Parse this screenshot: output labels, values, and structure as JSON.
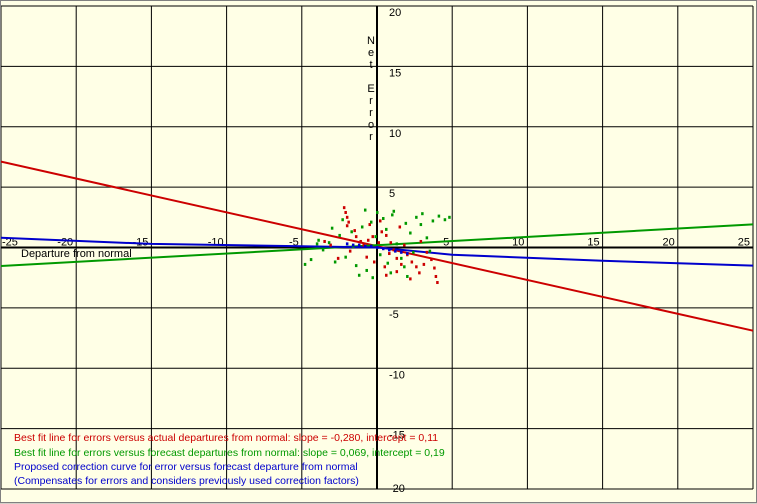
{
  "chart_data": {
    "type": "scatter",
    "title": "",
    "xlabel": "Departure from normal",
    "ylabel": "Net Error",
    "xlim": [
      -25,
      25
    ],
    "ylim": [
      -20,
      20
    ],
    "grid": true,
    "x_ticks": [
      "-25",
      "-20",
      "-15",
      "-10",
      "-5",
      "5",
      "10",
      "15",
      "20",
      "25"
    ],
    "x_tick_values": [
      -25,
      -20,
      -15,
      -10,
      -5,
      5,
      10,
      15,
      20,
      25
    ],
    "y_ticks": [
      "20",
      "15",
      "10",
      "5",
      "-5",
      "-10",
      "-15",
      "-20"
    ],
    "y_tick_values": [
      20,
      15,
      10,
      5,
      -5,
      -10,
      -15,
      -20
    ],
    "lines": [
      {
        "name": "actual",
        "color": "#cc0000",
        "slope": -0.28,
        "intercept": 0.11
      },
      {
        "name": "forecast",
        "color": "#009900",
        "slope": 0.069,
        "intercept": 0.19
      },
      {
        "name": "correction",
        "color": "#0000cc",
        "points": [
          [
            -25,
            0.8
          ],
          [
            -15,
            0.3
          ],
          [
            -5,
            0.1
          ],
          [
            0,
            0.0
          ],
          [
            5,
            -0.6
          ],
          [
            15,
            -1.1
          ],
          [
            25,
            -1.5
          ]
        ]
      }
    ],
    "series": [
      {
        "color": "#cc0000",
        "points": [
          [
            -2.2,
            3.3
          ],
          [
            -2.1,
            2.9
          ],
          [
            -2.0,
            2.5
          ],
          [
            -1.9,
            2.1
          ],
          [
            -2.0,
            1.8
          ],
          [
            -1.5,
            1.4
          ],
          [
            -1.4,
            0.9
          ],
          [
            -1.1,
            0.5
          ],
          [
            -0.9,
            0.2
          ],
          [
            -0.6,
            0.6
          ],
          [
            -0.3,
            0.9
          ],
          [
            0.1,
            0.4
          ],
          [
            0.3,
            1.3
          ],
          [
            0.6,
            1.0
          ],
          [
            0.9,
            0.4
          ],
          [
            1.1,
            -0.2
          ],
          [
            1.3,
            -0.9
          ],
          [
            1.6,
            -1.4
          ],
          [
            2.0,
            -0.6
          ],
          [
            2.3,
            -1.2
          ],
          [
            2.6,
            -1.6
          ],
          [
            2.8,
            -2.1
          ],
          [
            3.1,
            -1.4
          ],
          [
            3.6,
            -1.0
          ],
          [
            3.8,
            -1.7
          ],
          [
            3.9,
            -2.4
          ],
          [
            4.0,
            -2.9
          ],
          [
            -0.7,
            -0.8
          ],
          [
            -0.2,
            -1.2
          ],
          [
            0.5,
            -1.6
          ],
          [
            1.3,
            -2.0
          ],
          [
            -3.5,
            0.5
          ],
          [
            -3.1,
            0.2
          ],
          [
            -1.8,
            -0.3
          ],
          [
            0.8,
            -0.5
          ],
          [
            1.8,
            0.2
          ],
          [
            2.9,
            0.5
          ],
          [
            3.3,
            -0.4
          ],
          [
            -0.5,
            1.9
          ],
          [
            0.2,
            2.2
          ],
          [
            1.5,
            1.7
          ],
          [
            -2.6,
            -0.9
          ],
          [
            2.2,
            -2.6
          ],
          [
            0.6,
            -2.3
          ]
        ]
      },
      {
        "color": "#009900",
        "points": [
          [
            -3.9,
            0.6
          ],
          [
            -4.0,
            0.3
          ],
          [
            -3.6,
            -0.2
          ],
          [
            -3.2,
            0.4
          ],
          [
            -2.8,
            -1.2
          ],
          [
            -2.5,
            1.0
          ],
          [
            -2.1,
            -0.8
          ],
          [
            -1.7,
            1.3
          ],
          [
            -1.4,
            -1.5
          ],
          [
            -1.0,
            1.7
          ],
          [
            -0.7,
            -1.9
          ],
          [
            -0.4,
            2.1
          ],
          [
            -0.1,
            0.9
          ],
          [
            0.2,
            -0.6
          ],
          [
            0.4,
            2.4
          ],
          [
            0.7,
            -1.3
          ],
          [
            1.0,
            2.7
          ],
          [
            1.3,
            0.3
          ],
          [
            1.6,
            -0.9
          ],
          [
            1.9,
            2.0
          ],
          [
            2.2,
            1.2
          ],
          [
            2.6,
            2.5
          ],
          [
            2.9,
            1.9
          ],
          [
            3.3,
            0.8
          ],
          [
            3.7,
            2.2
          ],
          [
            4.1,
            2.6
          ],
          [
            4.5,
            2.3
          ],
          [
            4.8,
            2.5
          ],
          [
            -1.2,
            -2.3
          ],
          [
            -0.3,
            -2.5
          ],
          [
            0.9,
            -2.1
          ],
          [
            1.8,
            -1.6
          ],
          [
            2.4,
            -0.4
          ],
          [
            -4.4,
            -1.0
          ],
          [
            -3.0,
            1.6
          ],
          [
            0.0,
            2.9
          ],
          [
            1.1,
            3.0
          ],
          [
            3.0,
            2.8
          ],
          [
            -2.3,
            2.3
          ],
          [
            -0.8,
            3.1
          ],
          [
            2.0,
            -2.4
          ],
          [
            -1.6,
            0.1
          ],
          [
            0.6,
            1.5
          ],
          [
            3.5,
            -0.3
          ],
          [
            -4.8,
            -1.4
          ]
        ]
      },
      {
        "color": "#0000cc",
        "points": [
          [
            -2.0,
            0.3
          ],
          [
            -1.6,
            0.2
          ],
          [
            -1.2,
            0.2
          ],
          [
            -0.8,
            0.1
          ],
          [
            -0.4,
            0.1
          ],
          [
            0.0,
            0.0
          ],
          [
            0.4,
            -0.1
          ],
          [
            0.8,
            -0.2
          ],
          [
            1.2,
            -0.3
          ],
          [
            1.6,
            -0.4
          ],
          [
            2.0,
            -0.5
          ]
        ]
      }
    ]
  },
  "legend": {
    "line1": "Best fit line for errors versus actual departures from normal: slope = -0,280, intercept =  0,11",
    "line2": "Best fit line for errors versus forecast departures from normal: slope =  0,069, intercept =  0,19",
    "line3": "Proposed correction curve for error versus forecast departure from normal",
    "line4": "(Compensates for errors and considers previously used correction factors)",
    "color1": "#cc0000",
    "color2": "#009900",
    "color3": "#0000cc",
    "color4": "#0000cc"
  }
}
